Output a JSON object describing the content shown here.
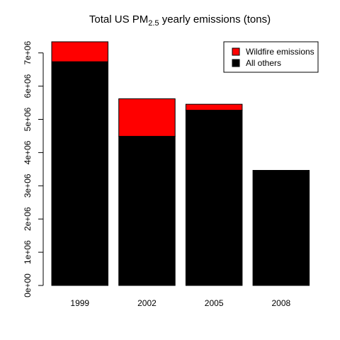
{
  "chart_data": {
    "type": "bar",
    "stacked": true,
    "title": {
      "main": "Total US PM",
      "subscript": "2.5",
      "rest": " yearly emissions (tons)"
    },
    "xlabel": "",
    "ylabel": "",
    "categories": [
      "1999",
      "2002",
      "2005",
      "2008"
    ],
    "series": [
      {
        "name": "All others",
        "color": "#000000",
        "values": [
          6735000,
          4490000,
          5275000,
          3465000
        ]
      },
      {
        "name": "Wildfire emissions",
        "color": "#ff0000",
        "values": [
          600000,
          1130000,
          180000,
          0
        ]
      }
    ],
    "ylim": [
      0,
      7500000
    ],
    "yticks": [
      {
        "value": 0,
        "label": "0e+00"
      },
      {
        "value": 1000000,
        "label": "1e+06"
      },
      {
        "value": 2000000,
        "label": "2e+06"
      },
      {
        "value": 3000000,
        "label": "3e+06"
      },
      {
        "value": 4000000,
        "label": "4e+06"
      },
      {
        "value": 5000000,
        "label": "5e+06"
      },
      {
        "value": 6000000,
        "label": "6e+06"
      },
      {
        "value": 7000000,
        "label": "7e+06"
      }
    ],
    "legend": {
      "position": "top-right",
      "entries": [
        {
          "label": "Wildfire emissions",
          "color": "#ff0000"
        },
        {
          "label": "All others",
          "color": "#000000"
        }
      ]
    },
    "grid": false
  }
}
